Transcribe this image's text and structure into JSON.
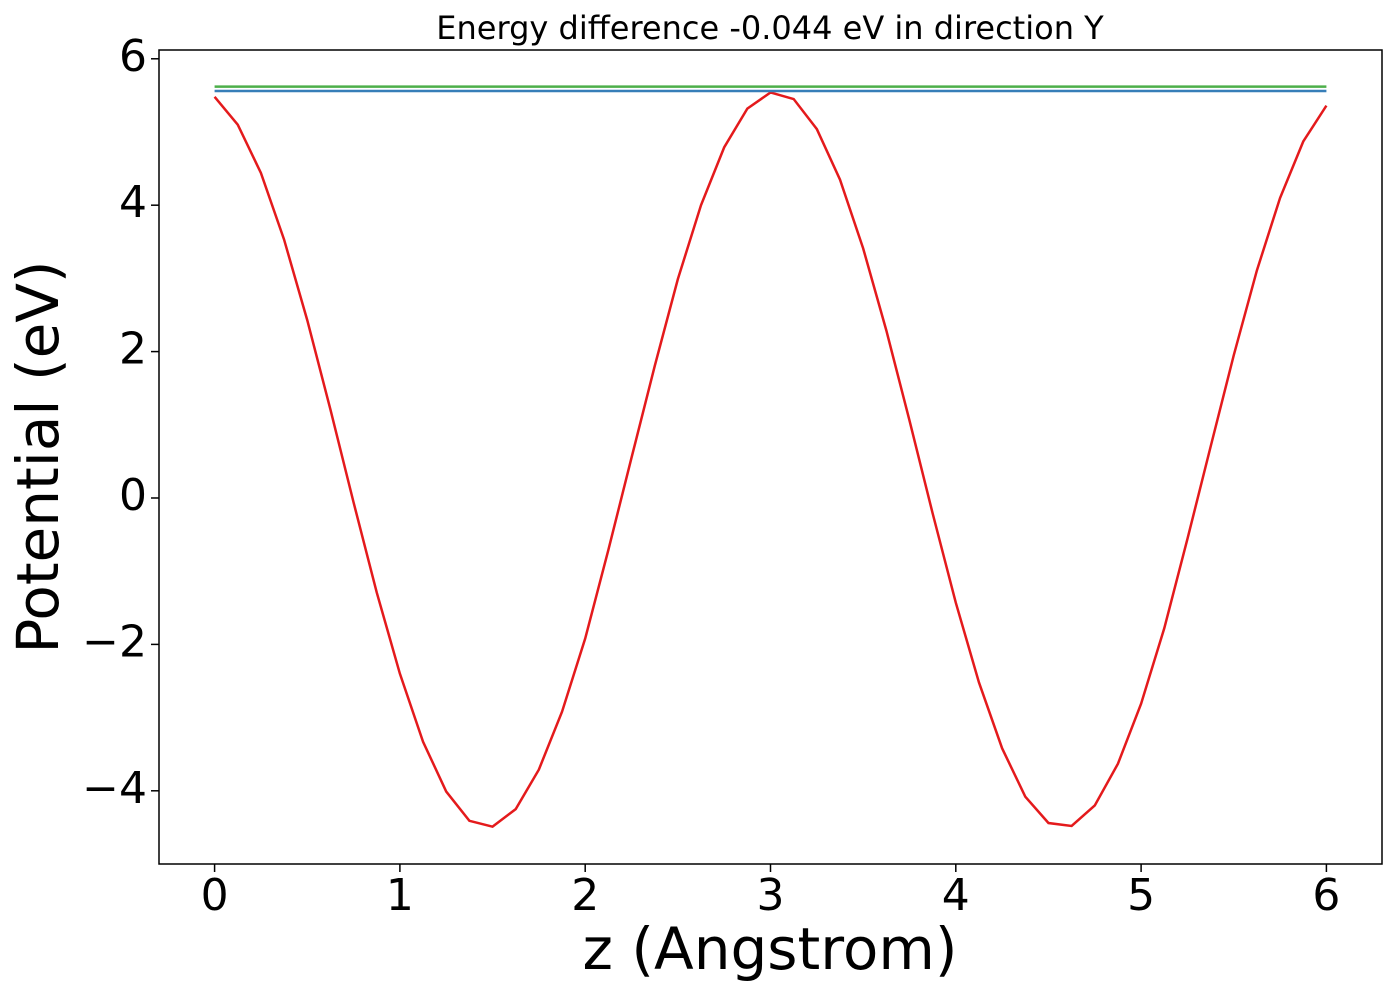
{
  "chart_data": {
    "type": "line",
    "title": "Energy difference -0.044 eV in direction Y",
    "x_label": "z (Angstrom)",
    "y_label": "Potential (eV)",
    "xlim": [
      -0.3,
      6.3
    ],
    "ylim": [
      -5.0,
      6.12
    ],
    "xticks": [
      0,
      1,
      2,
      3,
      4,
      5,
      6
    ],
    "yticks": [
      {
        "value": -4,
        "label": "−4"
      },
      {
        "value": -2,
        "label": "−2"
      },
      0,
      2,
      4,
      6
    ],
    "series": [
      {
        "color": "#e41a1c",
        "x": [
          0,
          0.125,
          0.25,
          0.375,
          0.5,
          0.625,
          0.75,
          0.875,
          1,
          1.125,
          1.25,
          1.375,
          1.5,
          1.625,
          1.75,
          1.875,
          2,
          2.125,
          2.25,
          2.375,
          2.5,
          2.625,
          2.75,
          2.875,
          3,
          3.125,
          3.25,
          3.375,
          3.5,
          3.625,
          3.75,
          3.875,
          4,
          4.125,
          4.25,
          4.375,
          4.5,
          4.625,
          4.75,
          4.875,
          5,
          5.125,
          5.25,
          5.375,
          5.5,
          5.625,
          5.75,
          5.875,
          6
        ],
        "values": [
          5.48,
          5.1,
          4.44,
          3.53,
          2.43,
          1.21,
          -0.06,
          -1.29,
          -2.4,
          -3.33,
          -4.01,
          -4.41,
          -4.49,
          -4.25,
          -3.71,
          -2.92,
          -1.92,
          -0.71,
          0.55,
          1.8,
          2.99,
          4.0,
          4.79,
          5.32,
          5.54,
          5.45,
          5.04,
          4.35,
          3.41,
          2.29,
          1.06,
          -0.21,
          -1.43,
          -2.52,
          -3.42,
          -4.08,
          -4.44,
          -4.48,
          -4.2,
          -3.63,
          -2.81,
          -1.78,
          -0.56,
          0.7,
          1.95,
          3.11,
          4.1,
          4.87,
          5.36
        ]
      },
      {
        "color": "#377eb8",
        "x": [
          0,
          6
        ],
        "values": [
          5.56,
          5.56
        ]
      },
      {
        "color": "#4daf4a",
        "x": [
          0,
          6
        ],
        "values": [
          5.62,
          5.62
        ]
      }
    ]
  }
}
